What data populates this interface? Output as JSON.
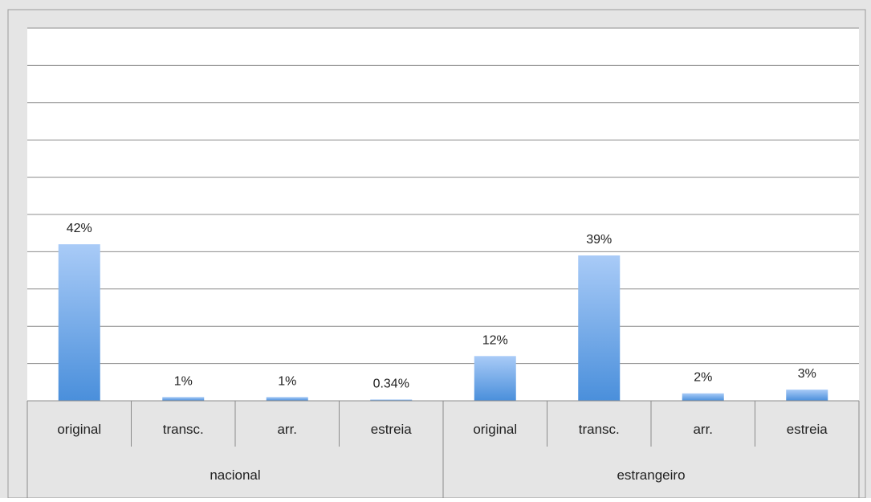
{
  "chart_data": {
    "type": "bar",
    "title": "",
    "xlabel": "",
    "ylabel": "",
    "ylim": [
      0,
      100
    ],
    "grid": true,
    "legend": "none",
    "bar_color_top": "#A9CBF7",
    "bar_color_bottom": "#4A8FDB",
    "groups": [
      {
        "name": "nacional",
        "categories": [
          "original",
          "transc.",
          "arr.",
          "estreia"
        ]
      },
      {
        "name": "estrangeiro",
        "categories": [
          "original",
          "transc.",
          "arr.",
          "estreia"
        ]
      }
    ],
    "values": [
      42,
      1,
      1,
      0.34,
      12,
      39,
      2,
      3
    ],
    "data_labels": [
      "42%",
      "1%",
      "1%",
      "0.34%",
      "12%",
      "39%",
      "2%",
      "3%"
    ]
  }
}
